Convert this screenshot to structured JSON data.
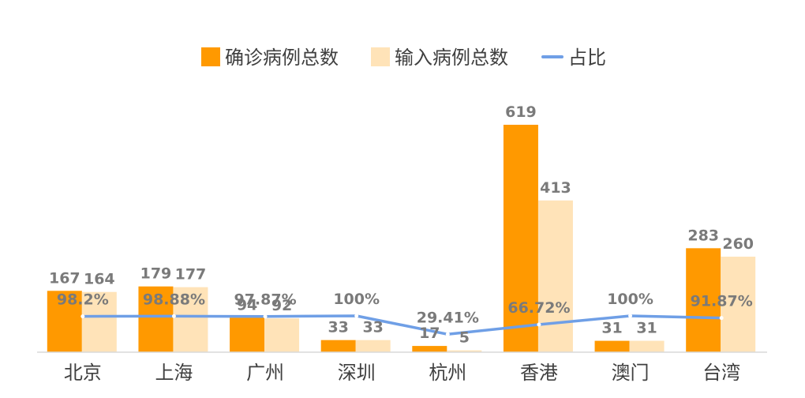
{
  "colors": {
    "confirmed": "#ff9900",
    "imported": "#ffe3b8",
    "ratio": "#6f9fe6",
    "axis": "#d9d9d9",
    "label": "#7a7a7a",
    "text": "#3f3f3f"
  },
  "chart_data": {
    "type": "bar",
    "title": "",
    "xlabel": "",
    "ylabel": "",
    "ylim": [
      0,
      660
    ],
    "categories": [
      "北京",
      "上海",
      "广州",
      "深圳",
      "杭州",
      "香港",
      "澳门",
      "台湾"
    ],
    "series": [
      {
        "name": "确诊病例总数",
        "type": "bar",
        "values": [
          167,
          179,
          94,
          33,
          17,
          619,
          31,
          283
        ],
        "labels": [
          "167",
          "179",
          "94",
          "33",
          "17",
          "619",
          "31",
          "283"
        ]
      },
      {
        "name": "输入病例总数",
        "type": "bar",
        "values": [
          164,
          177,
          92,
          33,
          5,
          413,
          31,
          260
        ],
        "labels": [
          "164",
          "177",
          "92",
          "33",
          "5",
          "413",
          "31",
          "260"
        ]
      },
      {
        "name": "占比",
        "type": "line",
        "values": [
          98.2,
          98.88,
          97.87,
          100,
          29.41,
          66.72,
          100,
          91.87
        ],
        "labels": [
          "98.2%",
          "98.88%",
          "97.87%",
          "100%",
          "29.41%",
          "66.72%",
          "100%",
          "91.87%"
        ]
      }
    ],
    "legend_position": "top-center",
    "grid": false
  }
}
